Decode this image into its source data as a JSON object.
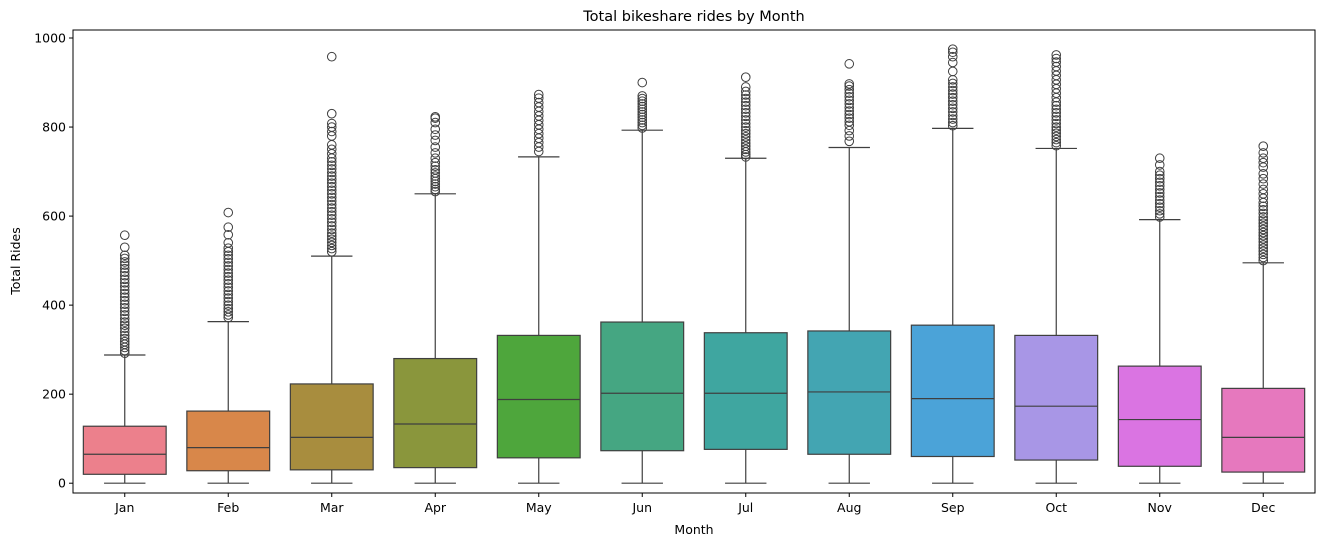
{
  "chart_data": {
    "type": "box",
    "title": "Total bikeshare rides by Month",
    "xlabel": "Month",
    "ylabel": "Total Rides",
    "ylim": [
      -22,
      1018
    ],
    "yticks": [
      0,
      200,
      400,
      600,
      800,
      1000
    ],
    "grid": false,
    "legend": "none",
    "categories": [
      "Jan",
      "Feb",
      "Mar",
      "Apr",
      "May",
      "Jun",
      "Jul",
      "Aug",
      "Sep",
      "Oct",
      "Nov",
      "Dec"
    ],
    "boxes": [
      {
        "category": "Jan",
        "color": "#ec808c",
        "whisker_low": 0,
        "q1": 20,
        "median": 65,
        "q3": 128,
        "whisker_high": 288,
        "outliers": [
          292,
          298,
          305,
          312,
          318,
          325,
          332,
          340,
          348,
          355,
          362,
          370,
          378,
          386,
          394,
          402,
          410,
          418,
          426,
          434,
          442,
          450,
          458,
          466,
          474,
          482,
          490,
          497,
          505,
          512,
          530,
          557
        ]
      },
      {
        "category": "Feb",
        "color": "#d8874a",
        "whisker_low": 0,
        "q1": 28,
        "median": 80,
        "q3": 162,
        "whisker_high": 363,
        "outliers": [
          372,
          378,
          385,
          392,
          400,
          408,
          416,
          424,
          432,
          440,
          448,
          456,
          464,
          472,
          480,
          488,
          496,
          504,
          512,
          520,
          528,
          540,
          558,
          575,
          608
        ]
      },
      {
        "category": "Mar",
        "color": "#a88d3e",
        "whisker_low": 0,
        "q1": 30,
        "median": 103,
        "q3": 223,
        "whisker_high": 510,
        "outliers": [
          520,
          527,
          534,
          541,
          548,
          555,
          562,
          570,
          578,
          586,
          594,
          602,
          610,
          618,
          626,
          634,
          642,
          650,
          658,
          666,
          674,
          682,
          690,
          698,
          706,
          714,
          722,
          730,
          740,
          750,
          760,
          780,
          790,
          800,
          808,
          830,
          958
        ]
      },
      {
        "category": "Apr",
        "color": "#8a963c",
        "whisker_low": 0,
        "q1": 35,
        "median": 133,
        "q3": 280,
        "whisker_high": 650,
        "outliers": [
          655,
          660,
          666,
          672,
          678,
          684,
          690,
          697,
          704,
          712,
          720,
          730,
          742,
          755,
          770,
          782,
          795,
          810,
          820,
          823
        ]
      },
      {
        "category": "May",
        "color": "#4ea63c",
        "whisker_low": 0,
        "q1": 57,
        "median": 188,
        "q3": 332,
        "whisker_high": 733,
        "outliers": [
          745,
          755,
          765,
          775,
          785,
          795,
          805,
          815,
          825,
          835,
          845,
          855,
          865,
          873
        ]
      },
      {
        "category": "Jun",
        "color": "#45a682",
        "whisker_low": 0,
        "q1": 73,
        "median": 202,
        "q3": 362,
        "whisker_high": 793,
        "outliers": [
          798,
          804,
          810,
          816,
          822,
          828,
          834,
          840,
          846,
          852,
          858,
          864,
          870,
          900
        ]
      },
      {
        "category": "Jul",
        "color": "#3fa6a0",
        "whisker_low": 0,
        "q1": 76,
        "median": 202,
        "q3": 338,
        "whisker_high": 730,
        "outliers": [
          733,
          738,
          744,
          750,
          757,
          764,
          771,
          778,
          785,
          792,
          800,
          808,
          816,
          824,
          832,
          840,
          848,
          856,
          864,
          872,
          880,
          890,
          912
        ]
      },
      {
        "category": "Aug",
        "color": "#43a5b2",
        "whisker_low": 0,
        "q1": 65,
        "median": 205,
        "q3": 342,
        "whisker_high": 754,
        "outliers": [
          768,
          780,
          792,
          804,
          812,
          820,
          828,
          836,
          844,
          852,
          860,
          868,
          876,
          884,
          892,
          897,
          942
        ]
      },
      {
        "category": "Sep",
        "color": "#4ba3d8",
        "whisker_low": 0,
        "q1": 60,
        "median": 190,
        "q3": 355,
        "whisker_high": 797,
        "outliers": [
          803,
          810,
          818,
          826,
          834,
          842,
          850,
          858,
          866,
          874,
          882,
          890,
          898,
          906,
          925,
          945,
          958,
          968,
          975
        ]
      },
      {
        "category": "Oct",
        "color": "#a896e6",
        "whisker_low": 0,
        "q1": 52,
        "median": 173,
        "q3": 332,
        "whisker_high": 752,
        "outliers": [
          758,
          765,
          772,
          779,
          786,
          793,
          800,
          808,
          816,
          824,
          832,
          840,
          848,
          856,
          866,
          876,
          886,
          896,
          906,
          916,
          926,
          936,
          946,
          954,
          962
        ]
      },
      {
        "category": "Nov",
        "color": "#da74e2",
        "whisker_low": 0,
        "q1": 38,
        "median": 143,
        "q3": 263,
        "whisker_high": 592,
        "outliers": [
          598,
          605,
          612,
          620,
          628,
          636,
          644,
          652,
          660,
          668,
          676,
          684,
          692,
          700,
          715,
          730
        ]
      },
      {
        "category": "Dec",
        "color": "#e678be",
        "whisker_low": 0,
        "q1": 25,
        "median": 103,
        "q3": 213,
        "whisker_high": 495,
        "outliers": [
          500,
          507,
          514,
          521,
          528,
          535,
          542,
          549,
          556,
          563,
          570,
          577,
          584,
          591,
          598,
          606,
          614,
          622,
          630,
          640,
          650,
          660,
          672,
          684,
          695,
          710,
          720,
          730,
          742,
          757
        ]
      }
    ]
  }
}
